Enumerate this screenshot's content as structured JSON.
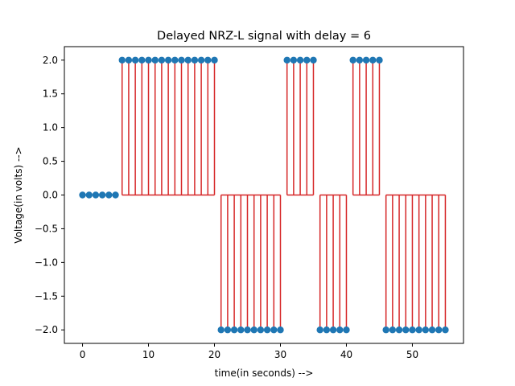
{
  "chart_data": {
    "type": "line",
    "title": "Delayed NRZ-L signal with delay = 6",
    "xlabel": "time(in seconds) -->",
    "ylabel": "Voltage(in volts) -->",
    "xlim": [
      -2.75,
      57.75
    ],
    "ylim": [
      -2.2,
      2.2
    ],
    "x_ticks": [
      0,
      10,
      20,
      30,
      40,
      50
    ],
    "x_tick_labels": [
      "0",
      "10",
      "20",
      "30",
      "40",
      "50"
    ],
    "y_ticks": [
      2.0,
      1.5,
      1.0,
      0.5,
      0.0,
      -0.5,
      -1.0,
      -1.5,
      -2.0
    ],
    "y_tick_labels": [
      "2.0",
      "1.5",
      "1.0",
      "0.5",
      "0.0",
      "−0.5",
      "−1.0",
      "−1.5",
      "−2.0"
    ],
    "grid": false,
    "series": [
      {
        "kind": "stem",
        "color": "#d62728",
        "marker_color": "#1f77b4",
        "baseline": 0,
        "x": [
          0,
          1,
          2,
          3,
          4,
          5,
          6,
          7,
          8,
          9,
          10,
          11,
          12,
          13,
          14,
          15,
          16,
          17,
          18,
          19,
          20,
          21,
          22,
          23,
          24,
          25,
          26,
          27,
          28,
          29,
          30,
          31,
          32,
          33,
          34,
          35,
          36,
          37,
          38,
          39,
          40,
          41,
          42,
          43,
          44,
          45,
          46,
          47,
          48,
          49,
          50,
          51,
          52,
          53,
          54,
          55
        ],
        "y": [
          0,
          0,
          0,
          0,
          0,
          0,
          2,
          2,
          2,
          2,
          2,
          2,
          2,
          2,
          2,
          2,
          2,
          2,
          2,
          2,
          2,
          -2,
          -2,
          -2,
          -2,
          -2,
          -2,
          -2,
          -2,
          -2,
          -2,
          2,
          2,
          2,
          2,
          2,
          -2,
          -2,
          -2,
          -2,
          -2,
          2,
          2,
          2,
          2,
          2,
          -2,
          -2,
          -2,
          -2,
          -2,
          -2,
          -2,
          -2,
          -2,
          -2
        ]
      }
    ]
  }
}
